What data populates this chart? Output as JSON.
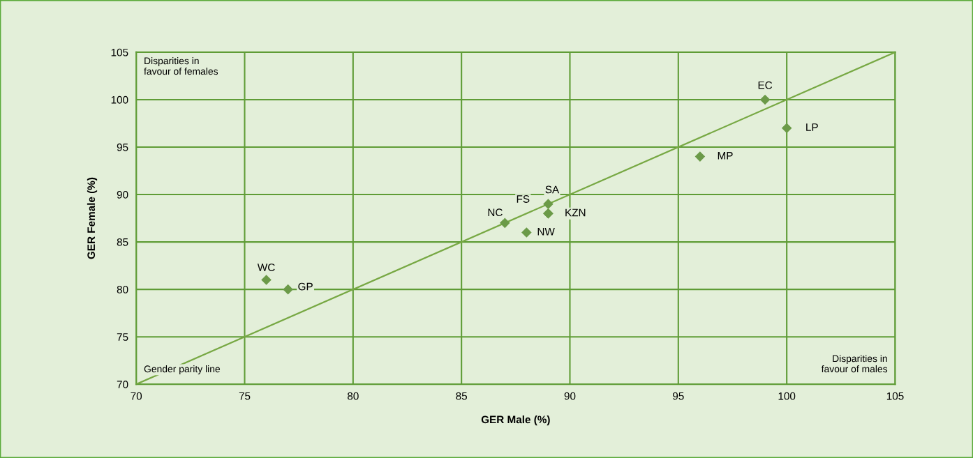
{
  "chart_data": {
    "type": "scatter",
    "xlabel": "GER Male (%)",
    "ylabel": "GER Female (%)",
    "xlim": [
      70,
      105
    ],
    "ylim": [
      70,
      105
    ],
    "xticks": [
      70,
      75,
      80,
      85,
      90,
      95,
      100,
      105
    ],
    "yticks": [
      70,
      75,
      80,
      85,
      90,
      95,
      100,
      105
    ],
    "grid": true,
    "legend": false,
    "series": [
      {
        "marker": "diamond",
        "color": "#6b9a48",
        "x": [
          76,
          77,
          87,
          88,
          89,
          89,
          89,
          99,
          100,
          96
        ],
        "values": [
          81,
          80,
          87,
          86,
          88,
          89,
          88,
          100,
          97,
          94
        ]
      },
      {
        "type": "line",
        "color": "#77a843",
        "x": [
          70,
          105
        ],
        "values": [
          70,
          105
        ]
      }
    ],
    "annotations": [
      {
        "text": "WC",
        "x": 76,
        "y": 81
      },
      {
        "text": "GP",
        "x": 77,
        "y": 80
      },
      {
        "text": "NC",
        "x": 87,
        "y": 87
      },
      {
        "text": "NW",
        "x": 88,
        "y": 86
      },
      {
        "text": "FS",
        "x": 89,
        "y": 88
      },
      {
        "text": "SA",
        "x": 89,
        "y": 89
      },
      {
        "text": "KZN",
        "x": 89,
        "y": 88
      },
      {
        "text": "EC",
        "x": 99,
        "y": 100
      },
      {
        "text": "LP",
        "x": 100,
        "y": 97
      },
      {
        "text": "MP",
        "x": 96,
        "y": 94
      },
      "Disparities in\nfavour of females",
      "Gender parity line",
      "Disparities in\nfavour of males"
    ]
  }
}
